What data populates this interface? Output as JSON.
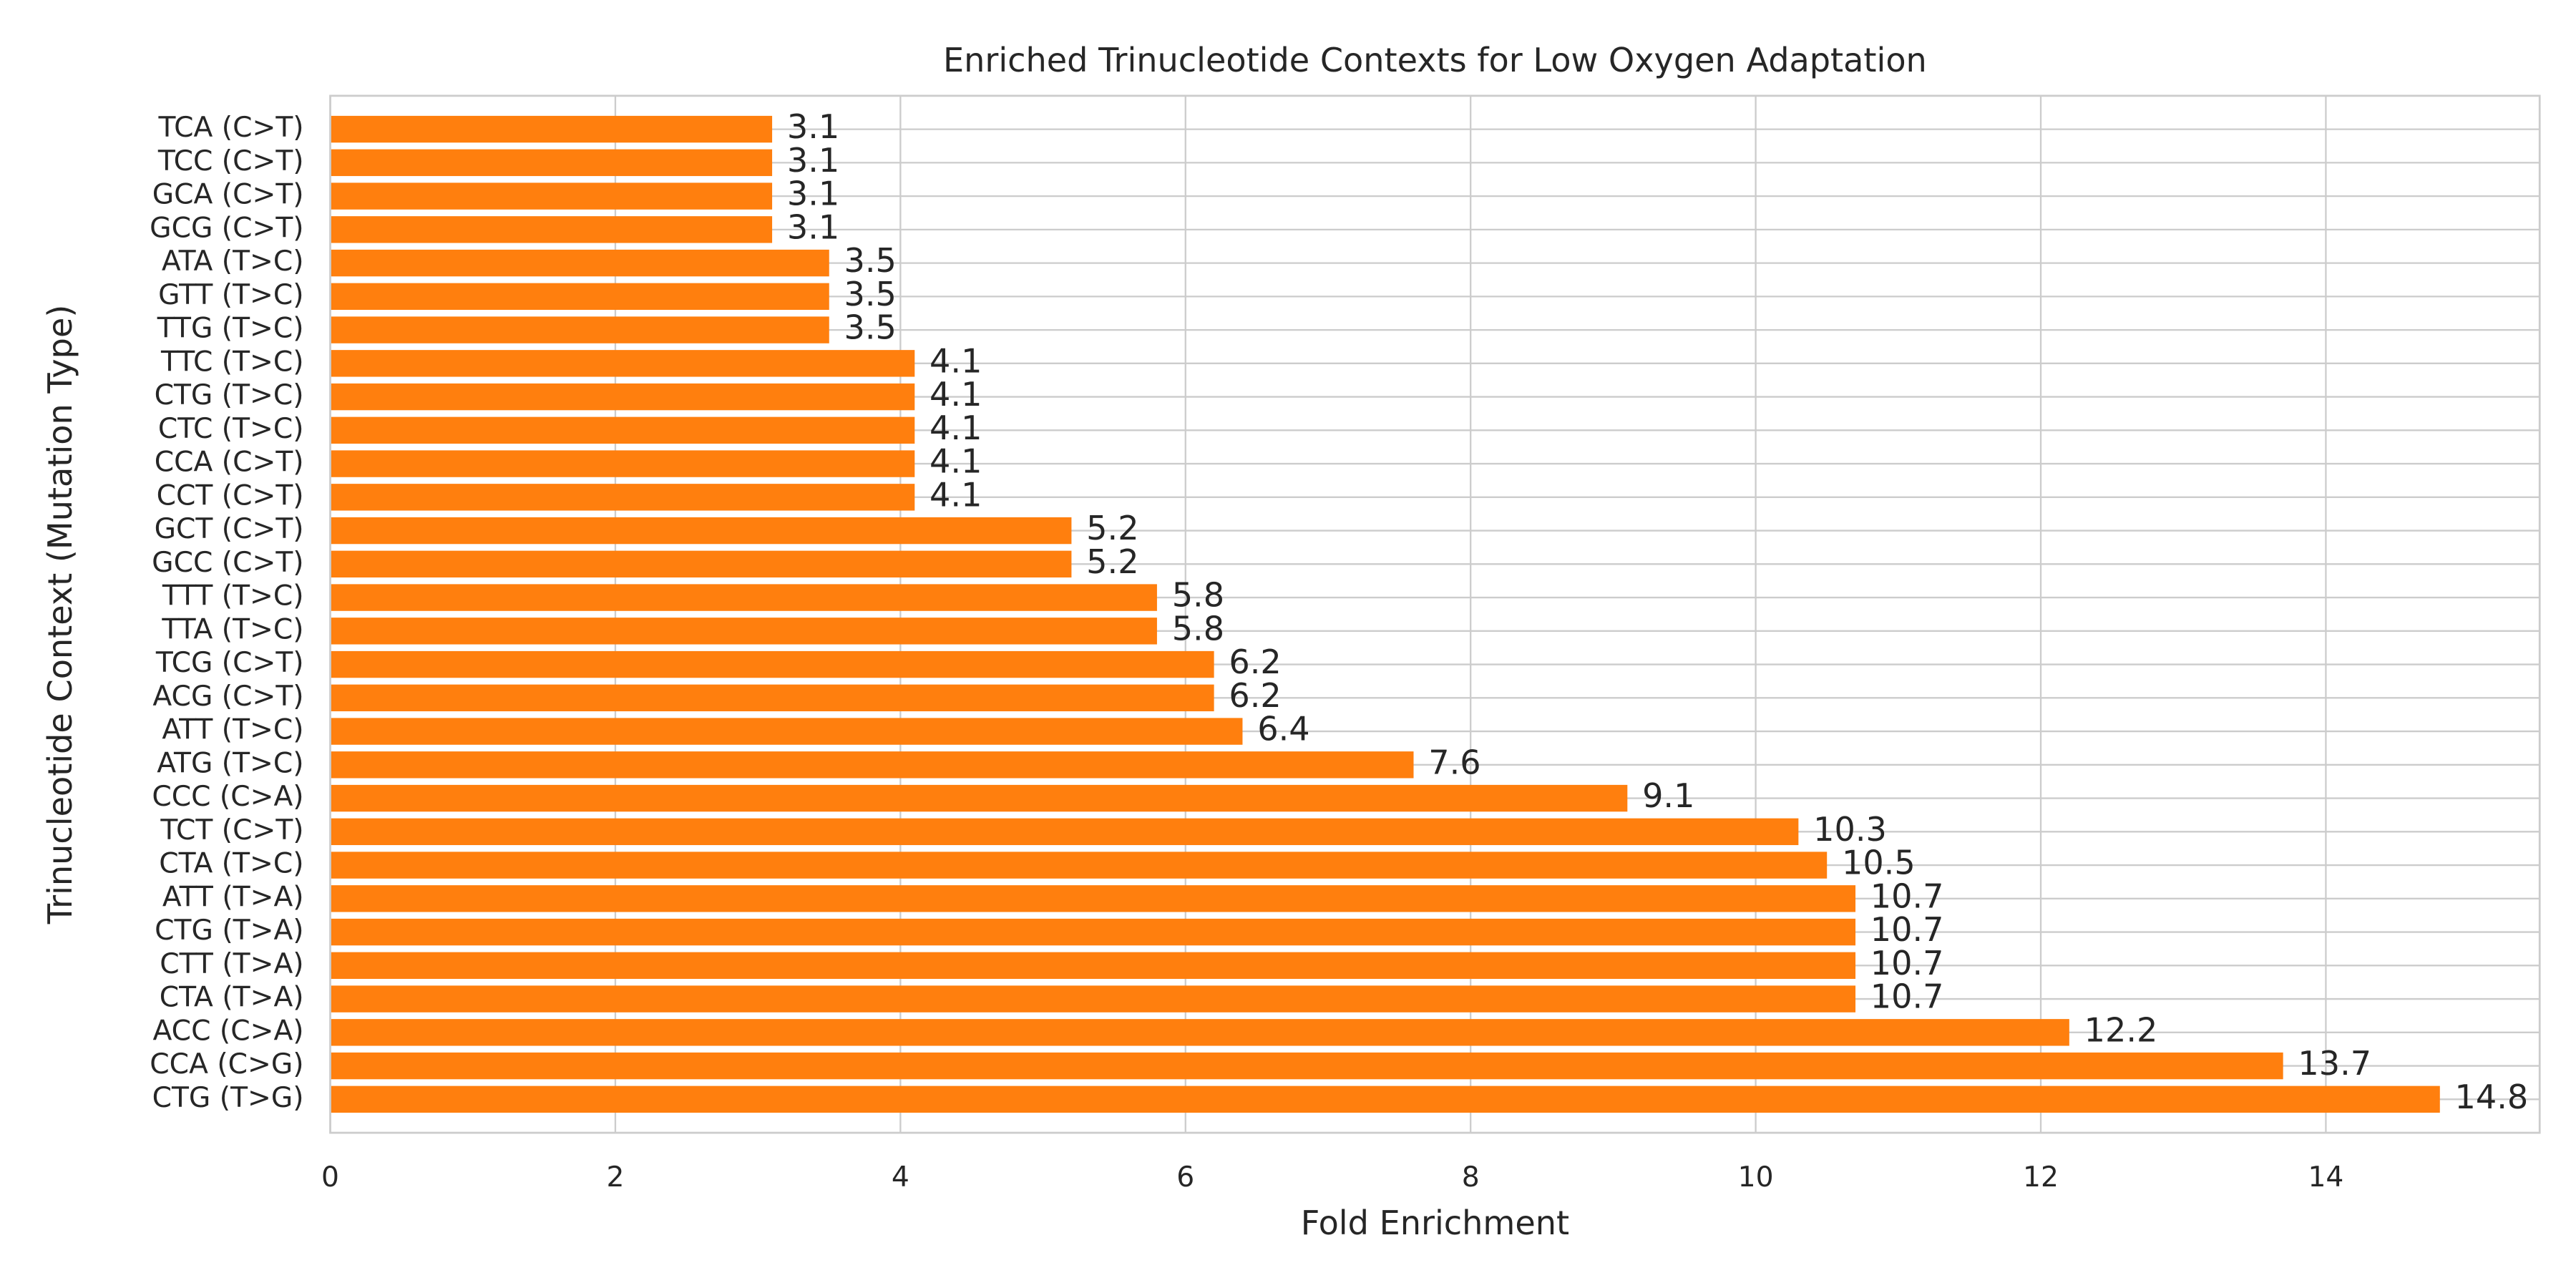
{
  "chart_data": {
    "type": "barh",
    "title": "Enriched Trinucleotide Contexts for Low Oxygen Adaptation",
    "xlabel": "Fold Enrichment",
    "ylabel": "Trinucleotide Context (Mutation Type)",
    "categories": [
      "CTG (T>G)",
      "CCA (C>G)",
      "ACC (C>A)",
      "CTA (T>A)",
      "CTT (T>A)",
      "CTG (T>A)",
      "ATT (T>A)",
      "CTA (T>C)",
      "TCT (C>T)",
      "CCC (C>A)",
      "ATG (T>C)",
      "ATT (T>C)",
      "ACG (C>T)",
      "TCG (C>T)",
      "TTA (T>C)",
      "TTT (T>C)",
      "GCC (C>T)",
      "GCT (C>T)",
      "CCT (C>T)",
      "CCA (C>T)",
      "CTC (T>C)",
      "CTG (T>C)",
      "TTC (T>C)",
      "TTG (T>C)",
      "GTT (T>C)",
      "ATA (T>C)",
      "GCG (C>T)",
      "GCA (C>T)",
      "TCC (C>T)",
      "TCA (C>T)"
    ],
    "values": [
      14.8,
      13.7,
      12.2,
      10.7,
      10.7,
      10.7,
      10.7,
      10.5,
      10.3,
      9.1,
      7.6,
      6.4,
      6.2,
      6.2,
      5.8,
      5.8,
      5.2,
      5.2,
      4.1,
      4.1,
      4.1,
      4.1,
      4.1,
      3.5,
      3.5,
      3.5,
      3.1,
      3.1,
      3.1,
      3.1
    ],
    "color": "#ff7f0e",
    "xlim": [
      0,
      15.5
    ],
    "xticks": [
      0,
      2,
      4,
      6,
      8,
      10,
      12,
      14
    ],
    "grid": true
  }
}
